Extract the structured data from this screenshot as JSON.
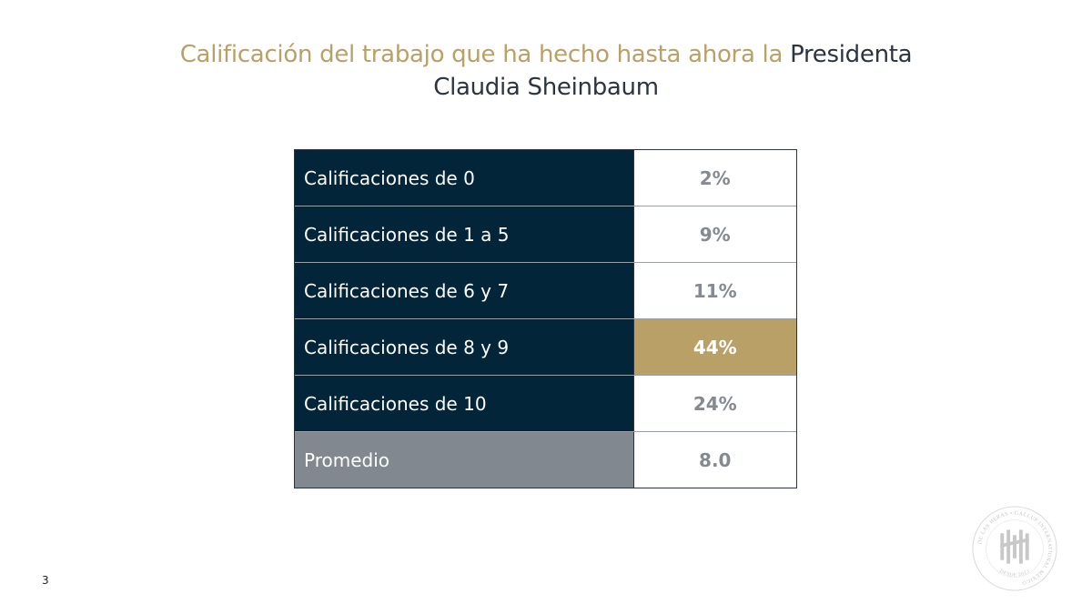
{
  "title": {
    "part_gold": "Calificación del trabajo que ha hecho hasta ahora la ",
    "part_navy_1": "Presidenta",
    "part_navy_2": "Claudia Sheinbaum"
  },
  "table": {
    "rows": [
      {
        "label": "Calificaciones de 0",
        "value": "2%"
      },
      {
        "label": "Calificaciones de 1 a 5",
        "value": "9%"
      },
      {
        "label": "Calificaciones de 6 y 7",
        "value": "11%"
      },
      {
        "label": "Calificaciones de 8 y 9",
        "value": "44%"
      },
      {
        "label": "Calificaciones de 10",
        "value": "24%"
      },
      {
        "label": "Promedio",
        "value": "8.0"
      }
    ]
  },
  "page_number": "3",
  "seal": {
    "ring_text": "DE LAS HERAS • GALLUP INTERNATIONAL MEXICO",
    "year_text": "DESDE 2023"
  },
  "colors": {
    "gold": "#b8a067",
    "navy": "#03253a",
    "gray": "#818890"
  }
}
